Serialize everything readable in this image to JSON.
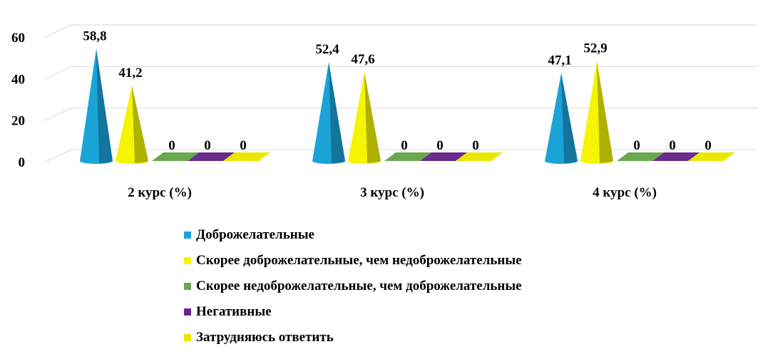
{
  "chart_data": {
    "type": "bar",
    "style": "3d-cone",
    "categories": [
      "2 курс (%)",
      "3 курс (%)",
      "4 курс (%)"
    ],
    "series": [
      {
        "name": "Доброжелательные",
        "color": "#1ba3d8",
        "values": [
          58.8,
          52.4,
          47.1
        ],
        "labels": [
          "58,8",
          "52,4",
          "47,1"
        ]
      },
      {
        "name": "Скорее доброжелательные, чем недоброжелательные",
        "color": "#f5f500",
        "values": [
          41.2,
          47.6,
          52.9
        ],
        "labels": [
          "41,2",
          "47,6",
          "52,9"
        ]
      },
      {
        "name": "Скорее недоброжелательные, чем доброжелательные",
        "color": "#6aa84f",
        "values": [
          0,
          0,
          0
        ],
        "labels": [
          "0",
          "0",
          "0"
        ]
      },
      {
        "name": "Негативные",
        "color": "#6a2b8c",
        "values": [
          0,
          0,
          0
        ],
        "labels": [
          "0",
          "0",
          "0"
        ]
      },
      {
        "name": "Затрудняюсь ответить",
        "color": "#e8e800",
        "values": [
          0,
          0,
          0
        ],
        "labels": [
          "0",
          "0",
          "0"
        ]
      }
    ],
    "yticks": [
      "0",
      "20",
      "40",
      "60"
    ],
    "ylim": [
      0,
      60
    ],
    "grid": true,
    "legend_position": "bottom",
    "title": "",
    "xlabel": "",
    "ylabel": ""
  }
}
